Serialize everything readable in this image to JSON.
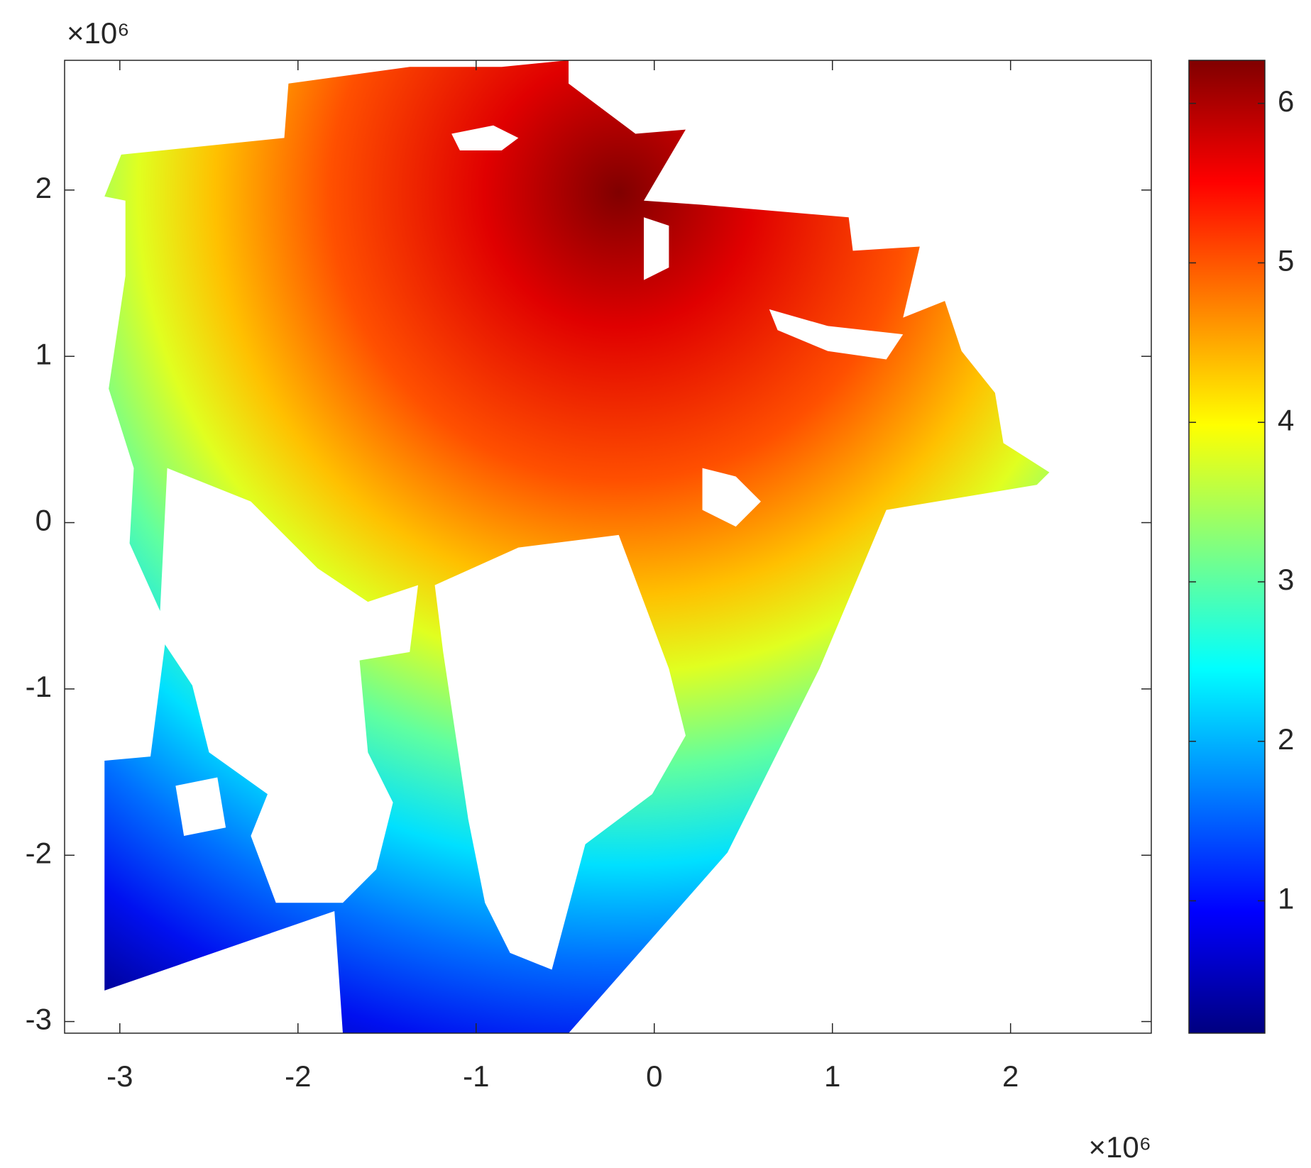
{
  "chart_data": {
    "type": "heatmap",
    "xlim": [
      -3.31,
      2.79
    ],
    "ylim": [
      -3.07,
      2.78
    ],
    "xticks": [
      -3,
      -2,
      -1,
      0,
      1,
      2
    ],
    "yticks": [
      -3,
      -2,
      -1,
      0,
      1,
      2
    ],
    "x_exponent": "×10⁶",
    "y_exponent": "×10⁶",
    "colormap": "jet",
    "clim": [
      0.17,
      6.27
    ],
    "cticks": [
      1,
      2,
      3,
      4,
      5,
      6
    ]
  }
}
